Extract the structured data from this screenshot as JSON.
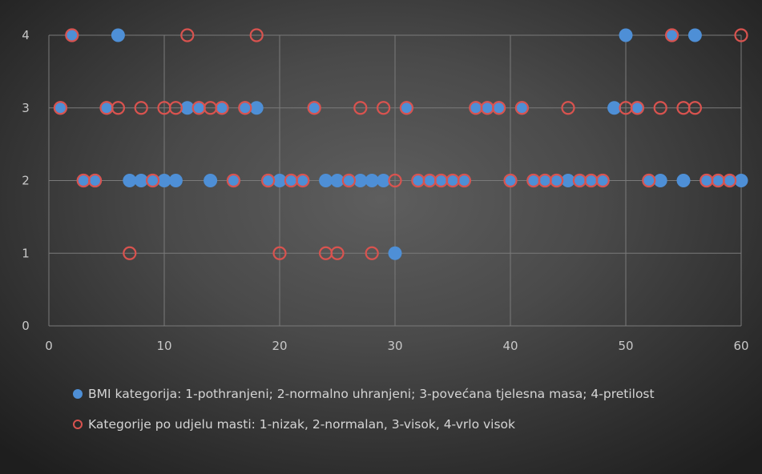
{
  "chart_data": {
    "type": "scatter",
    "title": "",
    "xlabel": "",
    "ylabel": "",
    "xlim": [
      0,
      60
    ],
    "ylim": [
      0,
      4
    ],
    "xticks": [
      0,
      10,
      20,
      30,
      40,
      50,
      60
    ],
    "yticks": [
      0,
      1,
      2,
      3,
      4
    ],
    "grid": true,
    "legend_position": "bottom",
    "series": [
      {
        "name": "BMI kategorija: 1-pothranjeni; 2-normalno uhranjeni; 3-povećana tjelesna masa; 4-pretilost",
        "marker": "filled-circle",
        "color": "#4e8fd6",
        "x": [
          1,
          2,
          3,
          4,
          5,
          6,
          7,
          8,
          9,
          10,
          11,
          12,
          13,
          14,
          15,
          16,
          17,
          18,
          19,
          20,
          21,
          22,
          23,
          24,
          25,
          26,
          27,
          28,
          29,
          30,
          31,
          32,
          33,
          34,
          35,
          36,
          37,
          38,
          39,
          40,
          41,
          42,
          43,
          44,
          45,
          46,
          47,
          48,
          49,
          50,
          51,
          52,
          53,
          54,
          55,
          56,
          57,
          58,
          59,
          60
        ],
        "y": [
          3,
          4,
          2,
          2,
          3,
          4,
          2,
          2,
          2,
          2,
          2,
          3,
          3,
          2,
          3,
          2,
          3,
          3,
          2,
          2,
          2,
          2,
          3,
          2,
          2,
          2,
          2,
          2,
          2,
          1,
          3,
          2,
          2,
          2,
          2,
          2,
          3,
          3,
          3,
          2,
          3,
          2,
          2,
          2,
          2,
          2,
          2,
          2,
          3,
          4,
          3,
          2,
          2,
          4,
          2,
          4,
          2,
          2,
          2,
          2
        ]
      },
      {
        "name": "Kategorije po udjelu masti: 1-nizak, 2-normalan, 3-visok, 4-vrlo visok",
        "marker": "open-circle",
        "color": "#d9534f",
        "x": [
          1,
          2,
          3,
          4,
          5,
          6,
          7,
          8,
          9,
          10,
          11,
          12,
          13,
          14,
          15,
          16,
          17,
          18,
          19,
          20,
          21,
          22,
          23,
          24,
          25,
          26,
          27,
          28,
          29,
          30,
          31,
          32,
          33,
          34,
          35,
          36,
          37,
          38,
          39,
          40,
          41,
          42,
          43,
          44,
          45,
          46,
          47,
          48,
          50,
          51,
          52,
          53,
          54,
          55,
          56,
          57,
          58,
          59,
          60
        ],
        "y": [
          3,
          4,
          2,
          2,
          3,
          3,
          1,
          3,
          2,
          3,
          3,
          4,
          3,
          3,
          3,
          2,
          3,
          4,
          2,
          1,
          2,
          2,
          3,
          1,
          1,
          2,
          3,
          1,
          3,
          2,
          3,
          2,
          2,
          2,
          2,
          2,
          3,
          3,
          3,
          2,
          3,
          2,
          2,
          2,
          3,
          2,
          2,
          2,
          3,
          3,
          2,
          3,
          4,
          3,
          3,
          2,
          2,
          2,
          4
        ]
      }
    ]
  },
  "legend": {
    "bmi_label": "BMI kategorija: 1-pothranjeni; 2-normalno uhranjeni; 3-povećana tjelesna masa; 4-pretilost",
    "fat_label": "Kategorije po udjelu masti: 1-nizak, 2-normalan, 3-visok, 4-vrlo visok"
  }
}
